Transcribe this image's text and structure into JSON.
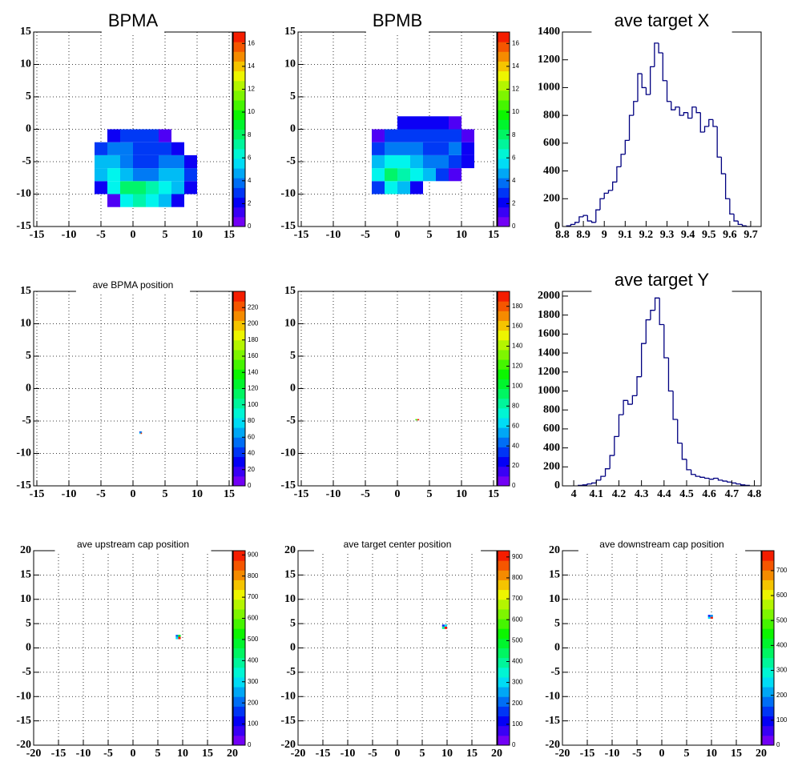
{
  "chart_data": [
    {
      "type": "heatmap",
      "title": "BPMA",
      "xlim": [
        -15.5,
        15.5
      ],
      "ylim": [
        -15,
        15
      ],
      "xticks": [
        -15,
        -10,
        -5,
        0,
        5,
        10,
        15
      ],
      "yticks": [
        -15,
        -10,
        -5,
        0,
        5,
        10,
        15
      ],
      "grid": true,
      "xbins": [
        -6,
        -4,
        -2,
        0,
        2,
        4,
        6,
        8,
        10
      ],
      "ybins": [
        -12,
        -10,
        -8,
        -6,
        -4,
        -2,
        0
      ],
      "z": [
        [
          0,
          1,
          6,
          7,
          6,
          5,
          2,
          0
        ],
        [
          2,
          6,
          8,
          8,
          7,
          6,
          5,
          2
        ],
        [
          5,
          6,
          5,
          4,
          4,
          5,
          5,
          3
        ],
        [
          5,
          5,
          4,
          3,
          3,
          4,
          4,
          2
        ],
        [
          3,
          4,
          4,
          3,
          3,
          3,
          2,
          0
        ],
        [
          0,
          2,
          3,
          3,
          3,
          1,
          0,
          0
        ]
      ],
      "zlim": [
        0,
        17
      ],
      "zticks": [
        0,
        2,
        4,
        6,
        8,
        10,
        12,
        14,
        16
      ]
    },
    {
      "type": "heatmap",
      "title": "BPMB",
      "xlim": [
        -15.5,
        15.5
      ],
      "ylim": [
        -15,
        15
      ],
      "xticks": [
        -15,
        -10,
        -5,
        0,
        5,
        10,
        15
      ],
      "yticks": [
        -15,
        -10,
        -5,
        0,
        5,
        10,
        15
      ],
      "grid": true,
      "xbins": [
        -4,
        -2,
        0,
        2,
        4,
        6,
        8,
        10,
        12
      ],
      "ybins": [
        -10,
        -8,
        -6,
        -4,
        -2,
        0,
        2
      ],
      "z": [
        [
          3,
          6,
          5,
          2,
          0,
          0,
          0,
          0
        ],
        [
          6,
          8,
          7,
          6,
          5,
          3,
          1,
          0
        ],
        [
          5,
          6,
          6,
          5,
          4,
          4,
          3,
          2
        ],
        [
          3,
          4,
          4,
          4,
          3,
          3,
          4,
          2
        ],
        [
          1,
          3,
          3,
          3,
          3,
          3,
          3,
          1
        ],
        [
          0,
          0,
          2,
          2,
          2,
          2,
          1,
          0
        ]
      ],
      "zlim": [
        0,
        17
      ],
      "zticks": [
        0,
        2,
        4,
        6,
        8,
        10,
        12,
        14,
        16
      ]
    },
    {
      "type": "histogram",
      "title": "ave target X",
      "color": "#000080",
      "xlim": [
        8.8,
        9.75
      ],
      "ylim": [
        0,
        1400
      ],
      "xticks": [
        8.8,
        8.9,
        9,
        9.1,
        9.2,
        9.3,
        9.4,
        9.5,
        9.6,
        9.7
      ],
      "yticks": [
        0,
        200,
        400,
        600,
        800,
        1000,
        1200,
        1400
      ],
      "grid": false,
      "bins": [
        8.82,
        8.84,
        8.86,
        8.88,
        8.9,
        8.92,
        8.94,
        8.96,
        8.98,
        9,
        9.02,
        9.04,
        9.06,
        9.08,
        9.1,
        9.12,
        9.14,
        9.16,
        9.18,
        9.2,
        9.22,
        9.24,
        9.26,
        9.28,
        9.3,
        9.32,
        9.34,
        9.36,
        9.38,
        9.4,
        9.42,
        9.44,
        9.46,
        9.48,
        9.5,
        9.52,
        9.54,
        9.56,
        9.58,
        9.6,
        9.62,
        9.64,
        9.66,
        9.68,
        9.7
      ],
      "counts": [
        5,
        15,
        30,
        70,
        80,
        40,
        30,
        120,
        200,
        240,
        260,
        320,
        430,
        520,
        620,
        800,
        900,
        1100,
        1000,
        950,
        1150,
        1320,
        1250,
        1050,
        900,
        840,
        860,
        800,
        820,
        780,
        860,
        820,
        680,
        720,
        770,
        720,
        500,
        380,
        200,
        90,
        40,
        15,
        5,
        0
      ]
    },
    {
      "type": "heatmap",
      "title": "ave BPMA position",
      "xlim": [
        -15.5,
        15.5
      ],
      "ylim": [
        -15,
        15
      ],
      "xticks": [
        -15,
        -10,
        -5,
        0,
        5,
        10,
        15
      ],
      "yticks": [
        -15,
        -10,
        -5,
        0,
        5,
        10,
        15
      ],
      "grid": true,
      "xbins": [
        1,
        1.2,
        1.4
      ],
      "ybins": [
        -7,
        -6.8,
        -6.6
      ],
      "z": [
        [
          80,
          230
        ],
        [
          40,
          60
        ]
      ],
      "zlim": [
        0,
        240
      ],
      "zticks": [
        0,
        20,
        40,
        60,
        80,
        100,
        120,
        140,
        160,
        180,
        200,
        220
      ]
    },
    {
      "type": "heatmap",
      "xlim": [
        -15.5,
        15.5
      ],
      "ylim": [
        -15,
        15
      ],
      "xticks": [
        -15,
        -10,
        -5,
        0,
        5,
        10,
        15
      ],
      "yticks": [
        -15,
        -10,
        -5,
        0,
        5,
        10,
        15
      ],
      "grid": true,
      "xbins": [
        2.8,
        3.1,
        3.4
      ],
      "ybins": [
        -4.9,
        -4.7
      ],
      "z": [
        [
          120,
          190
        ]
      ],
      "zlim": [
        0,
        195
      ],
      "zticks": [
        0,
        20,
        40,
        60,
        80,
        100,
        120,
        140,
        160,
        180
      ]
    },
    {
      "type": "histogram",
      "title": "ave target Y",
      "color": "#000080",
      "xlim": [
        3.95,
        4.83
      ],
      "ylim": [
        0,
        2050
      ],
      "xticks": [
        4,
        4.1,
        4.2,
        4.3,
        4.4,
        4.5,
        4.6,
        4.7,
        4.8
      ],
      "yticks": [
        0,
        200,
        400,
        600,
        800,
        1000,
        1200,
        1400,
        1600,
        1800,
        2000
      ],
      "grid": false,
      "bins": [
        4.02,
        4.04,
        4.06,
        4.08,
        4.1,
        4.12,
        4.14,
        4.16,
        4.18,
        4.2,
        4.22,
        4.24,
        4.26,
        4.28,
        4.3,
        4.32,
        4.34,
        4.36,
        4.38,
        4.4,
        4.42,
        4.44,
        4.46,
        4.48,
        4.5,
        4.52,
        4.54,
        4.56,
        4.58,
        4.6,
        4.62,
        4.64,
        4.66,
        4.68,
        4.7,
        4.72,
        4.74,
        4.76,
        4.78
      ],
      "counts": [
        5,
        10,
        20,
        30,
        60,
        100,
        180,
        320,
        520,
        750,
        900,
        860,
        950,
        1150,
        1500,
        1750,
        1850,
        1980,
        1700,
        1350,
        1000,
        700,
        450,
        280,
        170,
        120,
        100,
        90,
        80,
        70,
        80,
        60,
        50,
        40,
        30,
        20,
        10,
        5
      ]
    },
    {
      "type": "heatmap",
      "title": "ave upstream cap position",
      "xlim": [
        -20,
        20
      ],
      "ylim": [
        -20,
        20
      ],
      "xticks": [
        -20,
        -15,
        -10,
        -5,
        0,
        5,
        10,
        15,
        20
      ],
      "yticks": [
        -20,
        -15,
        -10,
        -5,
        0,
        5,
        10,
        15,
        20
      ],
      "grid": true,
      "xbins": [
        8.6,
        9.1,
        9.6
      ],
      "ybins": [
        1.8,
        2.3,
        2.7
      ],
      "z": [
        [
          300,
          900
        ],
        [
          200,
          500
        ]
      ],
      "zlim": [
        0,
        920
      ],
      "zticks": [
        0,
        100,
        200,
        300,
        400,
        500,
        600,
        700,
        800,
        900
      ]
    },
    {
      "type": "heatmap",
      "title": "ave target center  position",
      "xlim": [
        -20,
        20
      ],
      "ylim": [
        -20,
        20
      ],
      "xticks": [
        -20,
        -15,
        -10,
        -5,
        0,
        5,
        10,
        15,
        20
      ],
      "yticks": [
        -20,
        -15,
        -10,
        -5,
        0,
        5,
        10,
        15,
        20
      ],
      "grid": true,
      "xbins": [
        9,
        9.5,
        10
      ],
      "ybins": [
        3.9,
        4.4,
        4.8
      ],
      "z": [
        [
          400,
          920
        ],
        [
          150,
          300
        ]
      ],
      "zlim": [
        0,
        930
      ],
      "zticks": [
        0,
        100,
        200,
        300,
        400,
        500,
        600,
        700,
        800,
        900
      ]
    },
    {
      "type": "heatmap",
      "title": "ave downstream cap position",
      "xlim": [
        -20,
        20
      ],
      "ylim": [
        -20,
        20
      ],
      "xticks": [
        -20,
        -15,
        -10,
        -5,
        0,
        5,
        10,
        15,
        20
      ],
      "yticks": [
        -20,
        -15,
        -10,
        -5,
        0,
        5,
        10,
        15,
        20
      ],
      "grid": true,
      "xbins": [
        9.3,
        9.8,
        10.3
      ],
      "ybins": [
        6,
        6.4,
        6.8
      ],
      "z": [
        [
          250,
          760
        ],
        [
          120,
          200
        ]
      ],
      "zlim": [
        0,
        780
      ],
      "zticks": [
        0,
        100,
        200,
        300,
        400,
        500,
        600,
        700
      ]
    }
  ]
}
